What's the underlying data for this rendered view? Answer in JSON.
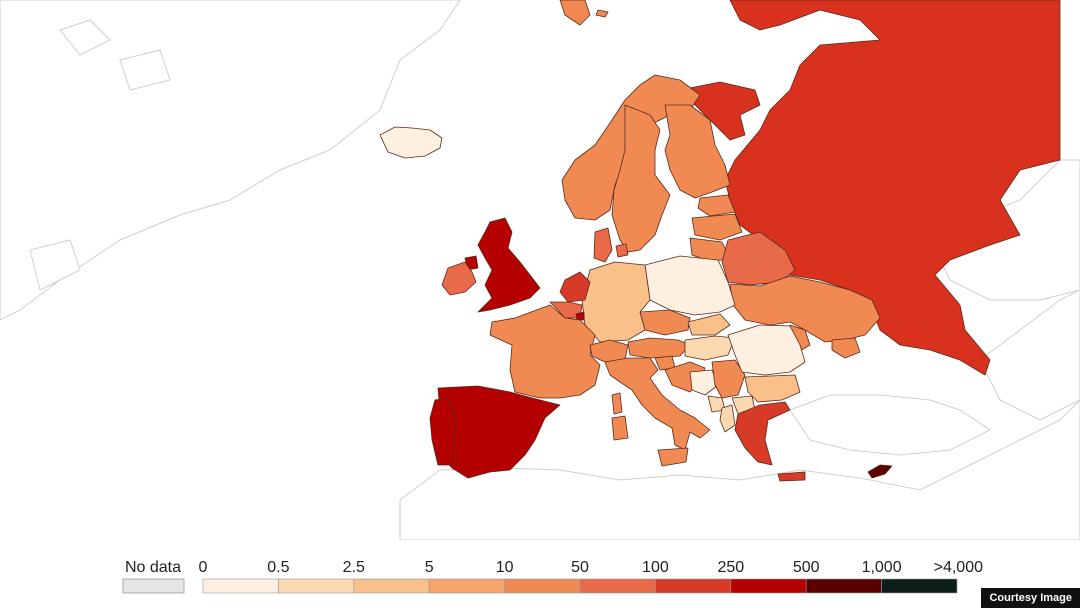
{
  "legend": {
    "no_data_label": "No data",
    "no_data_color": "#e6e6e6",
    "breaks": [
      "0",
      "0.5",
      "2.5",
      "5",
      "10",
      "50",
      "100",
      "250",
      "500",
      "1,000",
      ">4,000"
    ],
    "colors": [
      "#fdf0e1",
      "#fbd9b0",
      "#f9c08a",
      "#f6a568",
      "#f08a52",
      "#e86a48",
      "#d83a28",
      "#b40000",
      "#5a0000",
      "#0b1e1a"
    ]
  },
  "credit": "Courtesy Image",
  "colors": {
    "russia": "#d8321f",
    "very_high": "#b40000",
    "high": "#d83a28",
    "mid_high": "#e86a48",
    "mid": "#f08a52",
    "low_mid": "#f6a568",
    "low": "#f9c08a",
    "very_low": "#fbd9b0",
    "lowest": "#fdf0e1",
    "darkest": "#5a0000"
  }
}
